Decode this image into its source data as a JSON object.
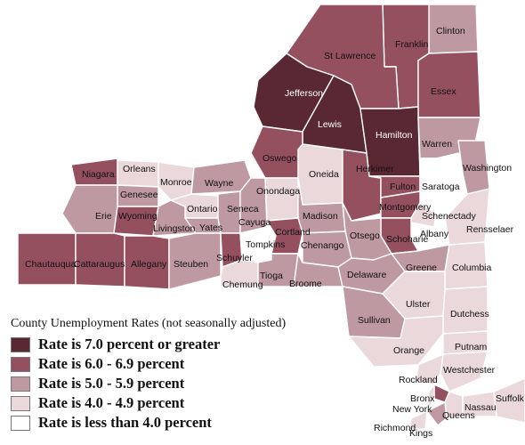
{
  "colors": {
    "c7": "#5a2833",
    "c6": "#955060",
    "c5": "#bf99a1",
    "c4": "#ead8db",
    "c3": "#ffffff"
  },
  "legend": {
    "title": "County Unemployment Rates (not seasonally adjusted)",
    "items": [
      {
        "key": "c7",
        "label": "Rate is 7.0 percent or greater"
      },
      {
        "key": "c6",
        "label": "Rate is 6.0 - 6.9 percent"
      },
      {
        "key": "c5",
        "label": "Rate is 5.0 - 5.9 percent"
      },
      {
        "key": "c4",
        "label": "Rate is 4.0 - 4.9 percent"
      },
      {
        "key": "c3",
        "label": "Rate is less than 4.0 percent"
      }
    ]
  },
  "counties": [
    {
      "name": "Clinton",
      "cls": "c5"
    },
    {
      "name": "Franklin",
      "cls": "c6"
    },
    {
      "name": "St Lawrence",
      "cls": "c6"
    },
    {
      "name": "Essex",
      "cls": "c6"
    },
    {
      "name": "Jefferson",
      "cls": "c7"
    },
    {
      "name": "Lewis",
      "cls": "c7"
    },
    {
      "name": "Hamilton",
      "cls": "c7"
    },
    {
      "name": "Warren",
      "cls": "c5"
    },
    {
      "name": "Washington",
      "cls": "c5"
    },
    {
      "name": "Oswego",
      "cls": "c6"
    },
    {
      "name": "Oneida",
      "cls": "c4"
    },
    {
      "name": "Herkimer",
      "cls": "c6"
    },
    {
      "name": "Fulton",
      "cls": "c6"
    },
    {
      "name": "Saratoga",
      "cls": "c3"
    },
    {
      "name": "Montgomery",
      "cls": "c6"
    },
    {
      "name": "Schenectady",
      "cls": "c4"
    },
    {
      "name": "Rensselaer",
      "cls": "c4"
    },
    {
      "name": "Albany",
      "cls": "c3"
    },
    {
      "name": "Schoharie",
      "cls": "c6"
    },
    {
      "name": "Niagara",
      "cls": "c6"
    },
    {
      "name": "Orleans",
      "cls": "c4"
    },
    {
      "name": "Monroe",
      "cls": "c4"
    },
    {
      "name": "Wayne",
      "cls": "c5"
    },
    {
      "name": "Genesee",
      "cls": "c5"
    },
    {
      "name": "Erie",
      "cls": "c5"
    },
    {
      "name": "Wyoming",
      "cls": "c6"
    },
    {
      "name": "Livingston",
      "cls": "c5"
    },
    {
      "name": "Ontario",
      "cls": "c4"
    },
    {
      "name": "Yates",
      "cls": "c5"
    },
    {
      "name": "Seneca",
      "cls": "c5"
    },
    {
      "name": "Cayuga",
      "cls": "c5"
    },
    {
      "name": "Onondaga",
      "cls": "c4"
    },
    {
      "name": "Madison",
      "cls": "c5"
    },
    {
      "name": "Otsego",
      "cls": "c5"
    },
    {
      "name": "Chautauqua",
      "cls": "c6"
    },
    {
      "name": "Cattaraugus",
      "cls": "c6"
    },
    {
      "name": "Allegany",
      "cls": "c6"
    },
    {
      "name": "Steuben",
      "cls": "c5"
    },
    {
      "name": "Schuyler",
      "cls": "c6"
    },
    {
      "name": "Tompkins",
      "cls": "c3"
    },
    {
      "name": "Cortland",
      "cls": "c6"
    },
    {
      "name": "Chenango",
      "cls": "c5"
    },
    {
      "name": "Chemung",
      "cls": "c4"
    },
    {
      "name": "Tioga",
      "cls": "c5"
    },
    {
      "name": "Broome",
      "cls": "c5"
    },
    {
      "name": "Delaware",
      "cls": "c5"
    },
    {
      "name": "Greene",
      "cls": "c5"
    },
    {
      "name": "Columbia",
      "cls": "c4"
    },
    {
      "name": "Ulster",
      "cls": "c4"
    },
    {
      "name": "Sullivan",
      "cls": "c5"
    },
    {
      "name": "Dutchess",
      "cls": "c4"
    },
    {
      "name": "Orange",
      "cls": "c4"
    },
    {
      "name": "Putnam",
      "cls": "c4"
    },
    {
      "name": "Westchester",
      "cls": "c4"
    },
    {
      "name": "Rockland",
      "cls": "c4"
    },
    {
      "name": "Bronx",
      "cls": "c6"
    },
    {
      "name": "New York",
      "cls": "c4"
    },
    {
      "name": "Queens",
      "cls": "c4"
    },
    {
      "name": "Nassau",
      "cls": "c4"
    },
    {
      "name": "Suffolk",
      "cls": "c4"
    },
    {
      "name": "Kings",
      "cls": "c5"
    },
    {
      "name": "Richmond",
      "cls": "c4"
    }
  ]
}
